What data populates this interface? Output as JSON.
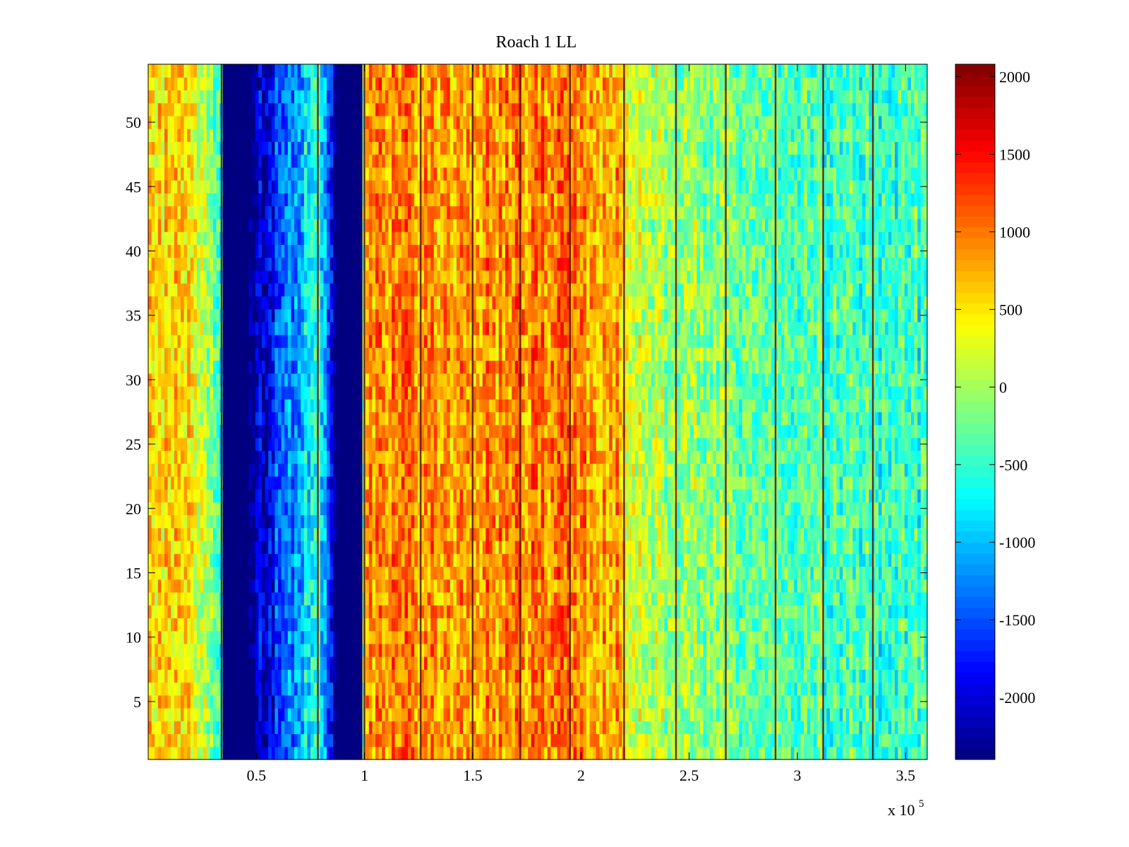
{
  "chart_data": {
    "type": "heatmap",
    "title": "Roach 1 LL",
    "xlabel": "",
    "ylabel": "",
    "x_exponent_label": {
      "prefix": "x 10",
      "exponent": "5"
    },
    "xlim": [
      0,
      3.6
    ],
    "ylim": [
      0.5,
      54.5
    ],
    "x_ticks": [
      0.5,
      1,
      1.5,
      2,
      2.5,
      3,
      3.5
    ],
    "x_tick_labels": [
      "0.5",
      "1",
      "1.5",
      "2",
      "2.5",
      "3",
      "3.5"
    ],
    "y_ticks": [
      5,
      10,
      15,
      20,
      25,
      30,
      35,
      40,
      45,
      50
    ],
    "y_tick_labels": [
      "5",
      "10",
      "15",
      "20",
      "25",
      "30",
      "35",
      "40",
      "45",
      "50"
    ],
    "colormap": "jet",
    "clim": [
      -2400,
      2080
    ],
    "colorbar_ticks": [
      2000,
      1500,
      1000,
      500,
      0,
      -500,
      -1000,
      -1500,
      -2000
    ],
    "colorbar_tick_labels": [
      "2000",
      "1500",
      "1000",
      "500",
      "0",
      "-500",
      "-1000",
      "-1500",
      "-2000"
    ],
    "rows": 54,
    "column_profile_x": [
      0,
      0.2,
      0.35,
      0.47,
      0.78,
      0.87,
      0.99,
      1.0,
      1.1,
      1.4,
      1.9,
      2.2,
      2.21,
      2.5,
      3.0,
      3.5,
      3.6
    ],
    "column_profile_value": [
      600,
      400,
      -700,
      -2400,
      -500,
      -2400,
      -2400,
      700,
      900,
      800,
      1000,
      700,
      100,
      -100,
      -300,
      -500,
      -400
    ],
    "solid_bands": [
      {
        "x_start": 0.35,
        "x_end": 0.47,
        "value": -2400
      },
      {
        "x_start": 0.87,
        "x_end": 0.99,
        "value": -2400
      }
    ],
    "dark_stripes_x": [
      0.34,
      0.785,
      1.0,
      1.26,
      1.5,
      1.72,
      1.95,
      2.2,
      2.44,
      2.67,
      2.9,
      3.12,
      3.35
    ]
  }
}
